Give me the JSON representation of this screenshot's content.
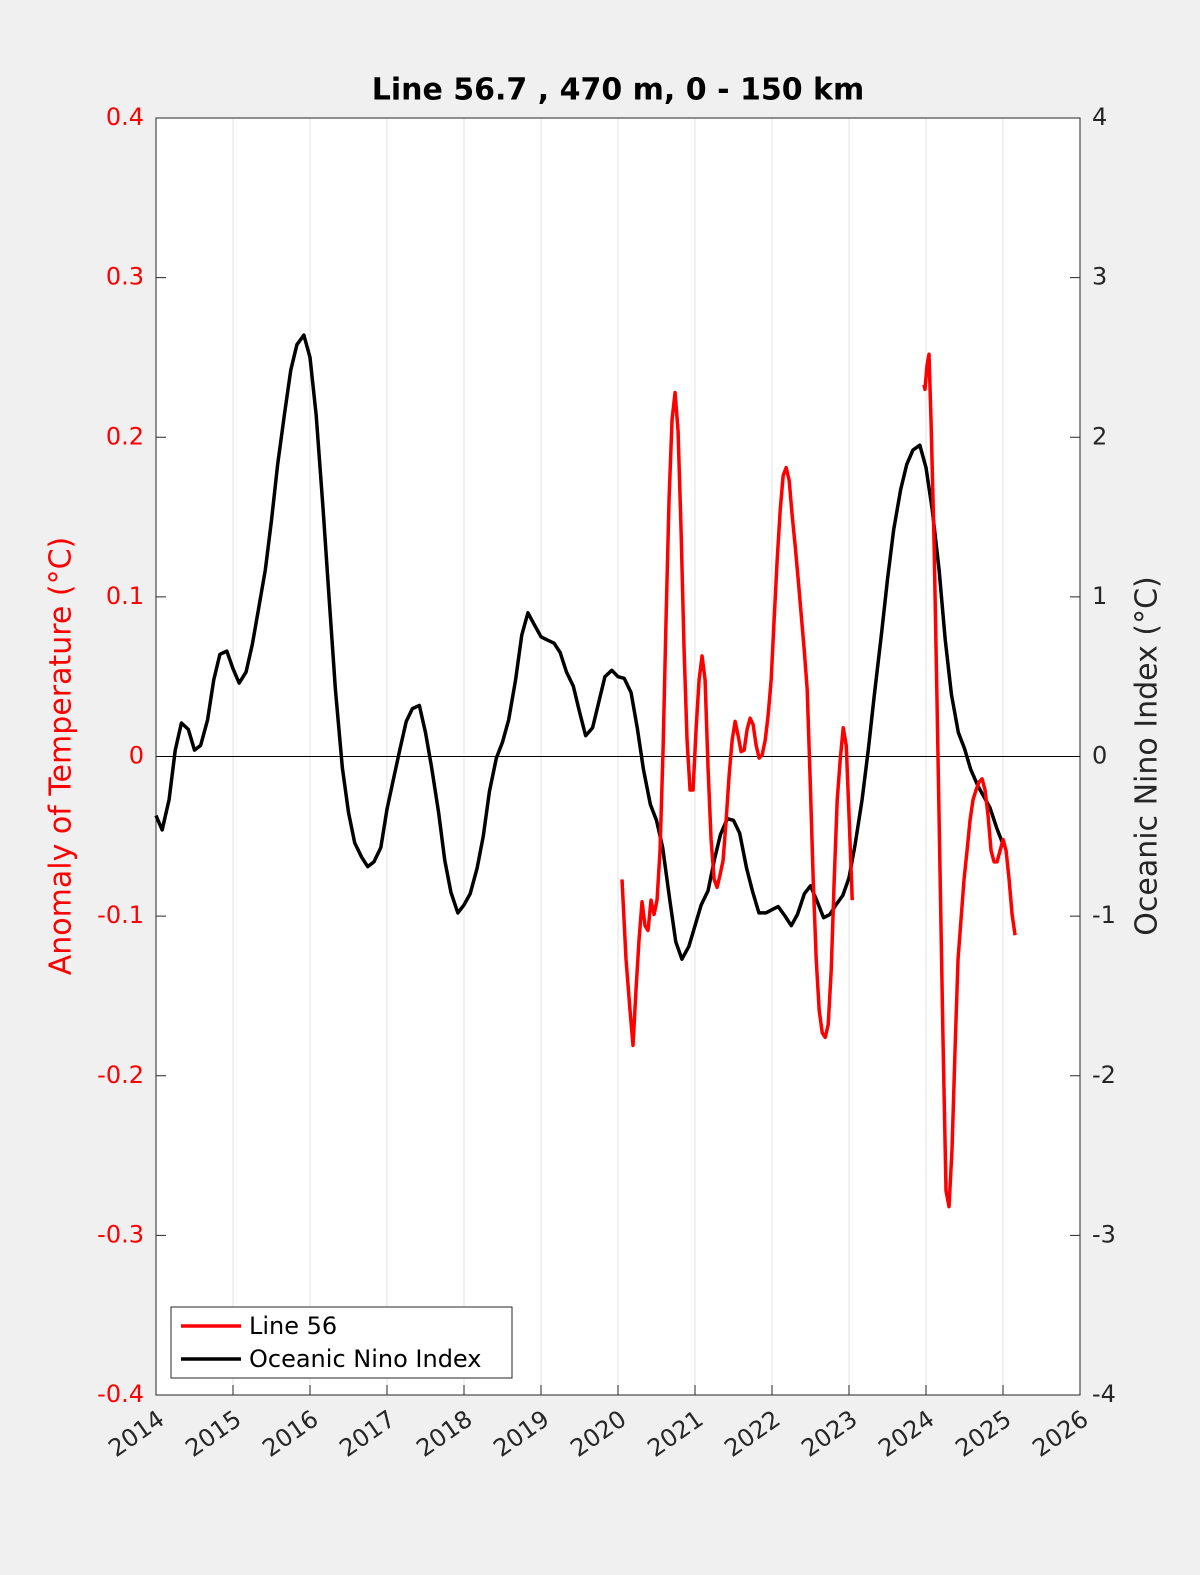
{
  "chart_data": {
    "type": "line",
    "title": "Line 56.7 , 470 m, 0 - 150 km",
    "ylabel": "Anomaly of Temperature (°C)",
    "y2label": "Oceanic Nino Index (°C)",
    "xlim": [
      2014,
      2026
    ],
    "xticks": [
      2014,
      2015,
      2016,
      2017,
      2018,
      2019,
      2020,
      2021,
      2022,
      2023,
      2024,
      2025,
      2026
    ],
    "ylim": [
      -0.4,
      0.4
    ],
    "yticks": [
      -0.4,
      -0.3,
      -0.2,
      -0.1,
      0,
      0.1,
      0.2,
      0.3,
      0.4
    ],
    "y2lim": [
      -4,
      4
    ],
    "y2ticks": [
      -4,
      -3,
      -2,
      -1,
      0,
      1,
      2,
      3,
      4
    ],
    "hline": 0,
    "xgrid": true,
    "legend": "lower left",
    "series": [
      {
        "name": "Line 56",
        "color": "#ff0000",
        "axis": "y",
        "x": [
          2020.052,
          2020.104,
          2020.156,
          2020.195,
          2020.234,
          2020.273,
          2020.312,
          2020.351,
          2020.39,
          2020.429,
          2020.468,
          2020.507,
          2020.546,
          2020.585,
          2020.624,
          2020.663,
          2020.702,
          2020.741,
          2020.78,
          2020.819,
          2020.858,
          2020.897,
          2020.936,
          2020.975,
          2021.014,
          2021.053,
          2021.092,
          2021.131,
          2021.17,
          2021.209,
          2021.248,
          2021.287,
          2021.326,
          2021.365,
          2021.404,
          2021.443,
          2021.482,
          2021.521,
          2021.56,
          2021.599,
          2021.638,
          2021.677,
          2021.716,
          2021.755,
          2021.794,
          2021.833,
          2021.872,
          2021.911,
          2021.95,
          2021.989,
          2022.028,
          2022.067,
          2022.106,
          2022.145,
          2022.184,
          2022.223,
          2022.262,
          2022.301,
          2022.34,
          2022.379,
          2022.418,
          2022.457,
          2022.496,
          2022.535,
          2022.574,
          2022.613,
          2022.652,
          2022.691,
          2022.73,
          2022.769,
          2022.808,
          2022.847,
          2022.886,
          2022.925,
          2022.964,
          2023.003,
          2023.042,
          2023.5,
          2023.974,
          2023.987,
          2024.013,
          2024.039,
          2024.065,
          2024.104,
          2024.143,
          2024.182,
          2024.221,
          2024.26,
          2024.299,
          2024.338,
          2024.377,
          2024.416,
          2024.455,
          2024.494,
          2024.533,
          2024.572,
          2024.611,
          2024.65,
          2024.689,
          2024.728,
          2024.767,
          2024.806,
          2024.845,
          2024.884,
          2024.923,
          2024.962,
          2025.001,
          2025.04,
          2025.079,
          2025.118,
          2025.157
        ],
        "values": [
          -0.077,
          -0.127,
          -0.159,
          -0.181,
          -0.146,
          -0.115,
          -0.091,
          -0.106,
          -0.109,
          -0.09,
          -0.099,
          -0.09,
          -0.059,
          0.004,
          0.086,
          0.161,
          0.211,
          0.228,
          0.204,
          0.142,
          0.067,
          0.01,
          -0.021,
          -0.021,
          0.017,
          0.048,
          0.063,
          0.048,
          -0.008,
          -0.052,
          -0.077,
          -0.082,
          -0.074,
          -0.065,
          -0.04,
          -0.012,
          0.01,
          0.022,
          0.013,
          0.003,
          0.004,
          0.017,
          0.024,
          0.02,
          0.007,
          -0.001,
          0.001,
          0.01,
          0.026,
          0.048,
          0.086,
          0.123,
          0.154,
          0.176,
          0.181,
          0.173,
          0.151,
          0.132,
          0.111,
          0.089,
          0.067,
          0.042,
          -0.015,
          -0.077,
          -0.127,
          -0.159,
          -0.173,
          -0.176,
          -0.168,
          -0.134,
          -0.077,
          -0.027,
          -0.002,
          0.018,
          0.007,
          -0.04,
          -0.09,
          null,
          0.233,
          0.23,
          0.245,
          0.252,
          0.211,
          0.136,
          0.035,
          -0.071,
          -0.178,
          -0.272,
          -0.282,
          -0.246,
          -0.184,
          -0.127,
          -0.102,
          -0.077,
          -0.059,
          -0.04,
          -0.027,
          -0.021,
          -0.016,
          -0.014,
          -0.021,
          -0.037,
          -0.059,
          -0.066,
          -0.066,
          -0.059,
          -0.052,
          -0.059,
          -0.077,
          -0.099,
          -0.112
        ]
      },
      {
        "name": "Oceanic Nino Index",
        "color": "#000000",
        "axis": "y2",
        "x": [
          2014,
          2014.08,
          2014.17,
          2014.25,
          2014.33,
          2014.42,
          2014.5,
          2014.58,
          2014.67,
          2014.75,
          2014.83,
          2014.92,
          2015,
          2015.08,
          2015.17,
          2015.25,
          2015.33,
          2015.42,
          2015.5,
          2015.58,
          2015.67,
          2015.75,
          2015.83,
          2015.92,
          2016,
          2016.08,
          2016.17,
          2016.25,
          2016.33,
          2016.42,
          2016.5,
          2016.58,
          2016.67,
          2016.75,
          2016.83,
          2016.92,
          2017,
          2017.08,
          2017.17,
          2017.25,
          2017.33,
          2017.42,
          2017.5,
          2017.58,
          2017.67,
          2017.75,
          2017.83,
          2017.92,
          2018,
          2018.08,
          2018.17,
          2018.25,
          2018.33,
          2018.42,
          2018.5,
          2018.58,
          2018.67,
          2018.75,
          2018.83,
          2018.92,
          2019,
          2019.08,
          2019.17,
          2019.25,
          2019.33,
          2019.42,
          2019.5,
          2019.58,
          2019.67,
          2019.75,
          2019.83,
          2019.92,
          2020,
          2020.08,
          2020.17,
          2020.25,
          2020.33,
          2020.42,
          2020.5,
          2020.58,
          2020.67,
          2020.75,
          2020.83,
          2020.92,
          2021,
          2021.08,
          2021.17,
          2021.25,
          2021.33,
          2021.42,
          2021.5,
          2021.58,
          2021.67,
          2021.75,
          2021.83,
          2021.92,
          2022,
          2022.08,
          2022.17,
          2022.25,
          2022.33,
          2022.42,
          2022.5,
          2022.58,
          2022.67,
          2022.75,
          2022.83,
          2022.92,
          2023,
          2023.08,
          2023.17,
          2023.25,
          2023.33,
          2023.42,
          2023.5,
          2023.58,
          2023.67,
          2023.75,
          2023.83,
          2023.92,
          2024,
          2024.08,
          2024.17,
          2024.25,
          2024.33,
          2024.42,
          2024.5,
          2024.58,
          2024.67,
          2024.75,
          2024.83,
          2024.92,
          2025
        ],
        "values": [
          -0.37,
          -0.46,
          -0.27,
          0.04,
          0.21,
          0.17,
          0.04,
          0.07,
          0.23,
          0.48,
          0.64,
          0.66,
          0.55,
          0.46,
          0.53,
          0.7,
          0.92,
          1.17,
          1.48,
          1.83,
          2.15,
          2.42,
          2.58,
          2.64,
          2.5,
          2.14,
          1.55,
          0.98,
          0.42,
          -0.07,
          -0.35,
          -0.54,
          -0.63,
          -0.69,
          -0.66,
          -0.57,
          -0.33,
          -0.15,
          0.05,
          0.22,
          0.3,
          0.32,
          0.15,
          -0.07,
          -0.35,
          -0.65,
          -0.85,
          -0.98,
          -0.93,
          -0.86,
          -0.7,
          -0.5,
          -0.22,
          -0.01,
          0.09,
          0.23,
          0.48,
          0.76,
          0.9,
          0.82,
          0.75,
          0.73,
          0.71,
          0.65,
          0.53,
          0.44,
          0.28,
          0.13,
          0.18,
          0.34,
          0.5,
          0.54,
          0.5,
          0.49,
          0.4,
          0.18,
          -0.08,
          -0.3,
          -0.4,
          -0.57,
          -0.89,
          -1.16,
          -1.27,
          -1.19,
          -1.06,
          -0.93,
          -0.84,
          -0.65,
          -0.49,
          -0.39,
          -0.4,
          -0.48,
          -0.7,
          -0.85,
          -0.98,
          -0.98,
          -0.96,
          -0.94,
          -1.0,
          -1.06,
          -0.99,
          -0.86,
          -0.81,
          -0.9,
          -1.01,
          -0.99,
          -0.93,
          -0.87,
          -0.76,
          -0.55,
          -0.27,
          0.04,
          0.39,
          0.76,
          1.11,
          1.42,
          1.67,
          1.83,
          1.92,
          1.95,
          1.81,
          1.55,
          1.17,
          0.73,
          0.39,
          0.15,
          0.05,
          -0.08,
          -0.18,
          -0.25,
          -0.32,
          -0.45,
          -0.55
        ]
      }
    ]
  }
}
